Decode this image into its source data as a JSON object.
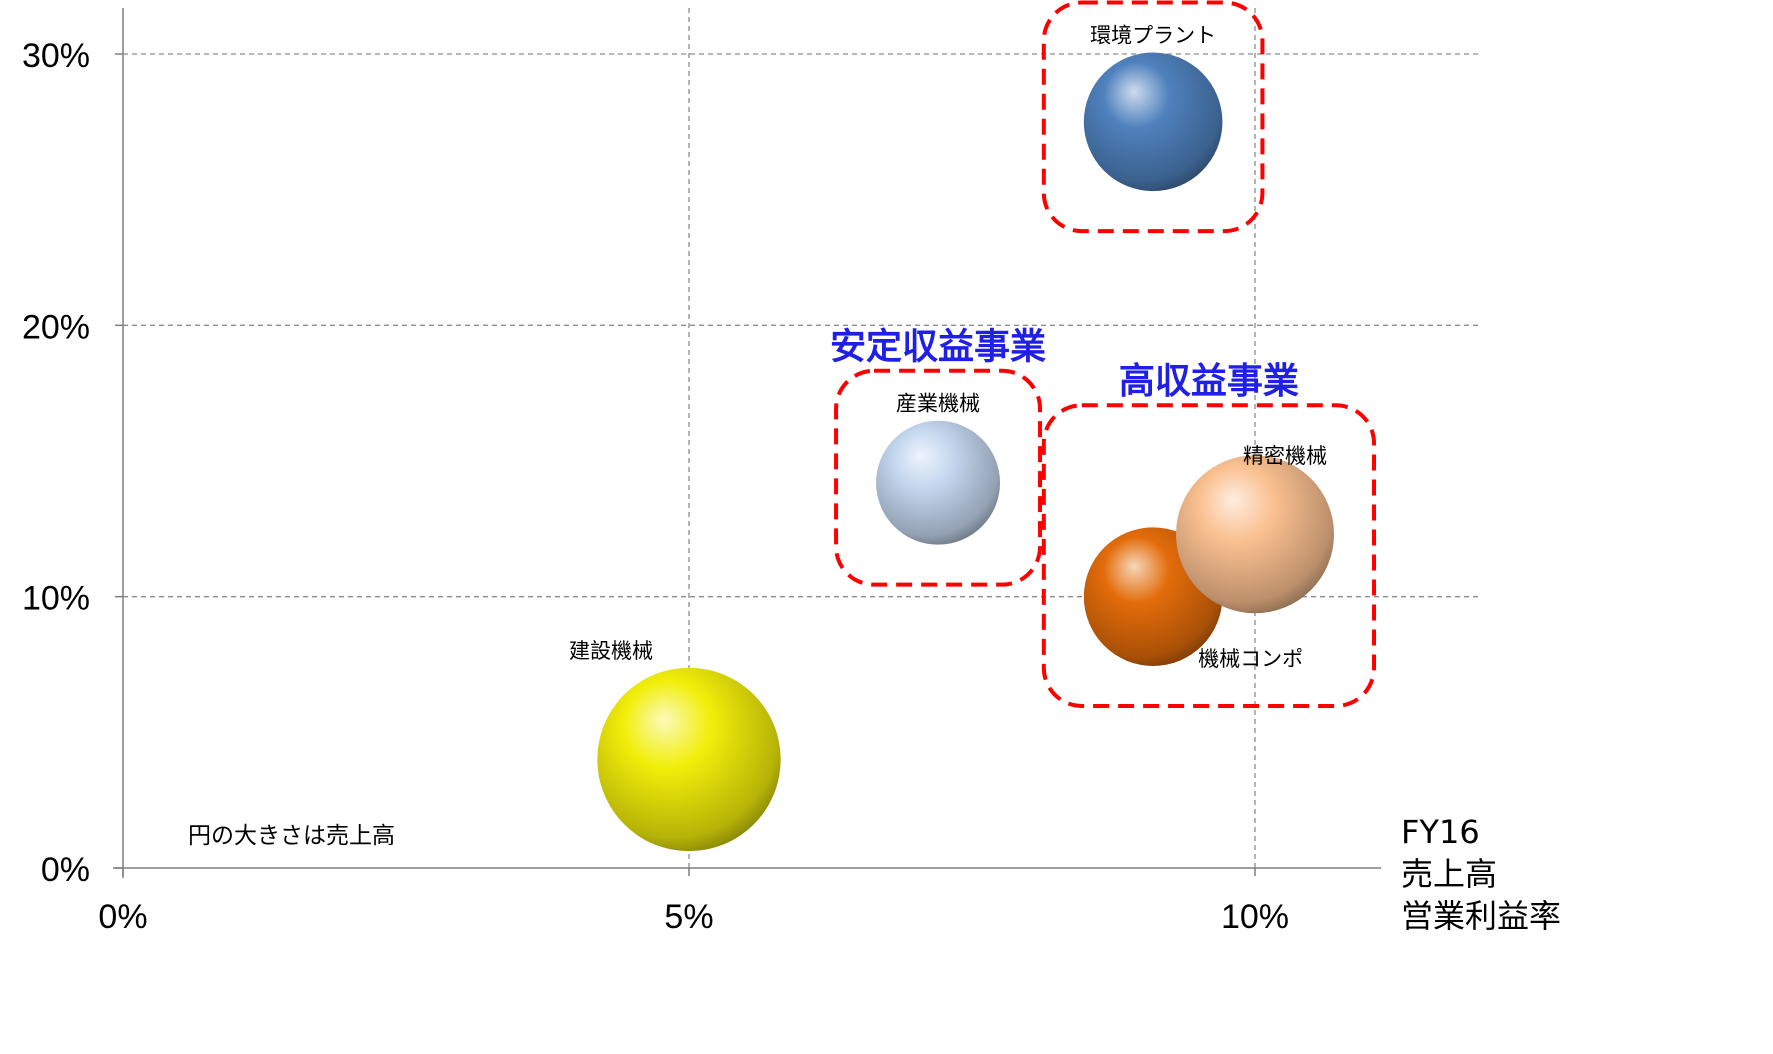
{
  "chart_data": {
    "type": "bubble",
    "xlim": [
      0,
      11.5
    ],
    "ylim": [
      0,
      30
    ],
    "x_ticks": [
      {
        "value": 0,
        "label": "0%"
      },
      {
        "value": 5,
        "label": "5%"
      },
      {
        "value": 10,
        "label": "10%"
      }
    ],
    "y_ticks": [
      {
        "value": 0,
        "label": "0%"
      },
      {
        "value": 10,
        "label": "10%"
      },
      {
        "value": 20,
        "label": "20%"
      },
      {
        "value": 30,
        "label": "30%"
      }
    ],
    "grid": true,
    "axis_caption": [
      "FY16",
      "売上高",
      "営業利益率"
    ],
    "note": "円の大きさは売上高",
    "points": [
      {
        "name": "建設機械",
        "x": 5.0,
        "y": 4.0,
        "size": 3.5,
        "color": "#f2ee0a"
      },
      {
        "name": "産業機械",
        "x": 7.2,
        "y": 14.2,
        "size": 1.6,
        "color": "#c4d7ef"
      },
      {
        "name": "環境プラント",
        "x": 9.1,
        "y": 27.5,
        "size": 2.0,
        "color": "#4f81bd"
      },
      {
        "name": "機械コンポ",
        "x": 9.1,
        "y": 10.0,
        "size": 2.0,
        "color": "#e36c0a"
      },
      {
        "name": "精密機械",
        "x": 10.0,
        "y": 12.3,
        "size": 2.6,
        "color": "#fac090"
      }
    ],
    "groups": [
      {
        "label": "安定収益事業",
        "members": [
          "産業機械"
        ]
      },
      {
        "label": "高収益事業",
        "members": [
          "精密機械",
          "機械コンポ"
        ]
      },
      {
        "label": "",
        "members": [
          "環境プラント"
        ]
      }
    ],
    "group_box_color": "#ff0000",
    "group_label_color": "#1f1fe6"
  }
}
